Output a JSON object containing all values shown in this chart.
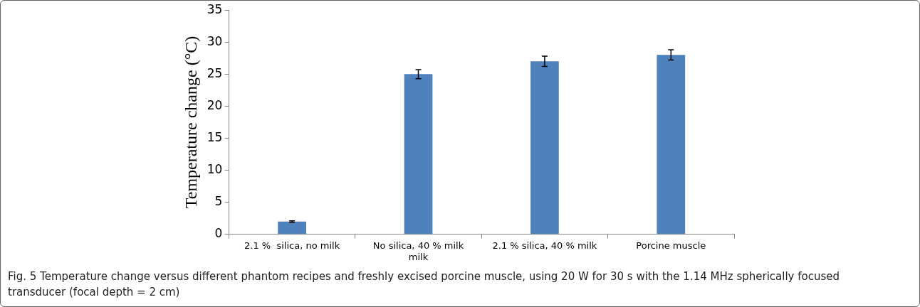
{
  "chart_data": {
    "type": "bar",
    "ylabel": "Temperature change (°C)",
    "categories": [
      "2.1 %  silica, no milk",
      "No silica, 40 % milk\nmilk",
      "2.1 % silica, 40 % milk",
      "Porcine muscle"
    ],
    "values": [
      2,
      25,
      27,
      28
    ],
    "errors": [
      0.1,
      0.7,
      0.8,
      0.8
    ],
    "color": "#4f81bd",
    "ylim": [
      0,
      35
    ],
    "yticks": [
      0,
      5,
      10,
      15,
      20,
      25,
      30,
      35
    ],
    "grid": false,
    "legend": false,
    "annotations": [
      "Fig. 5 Temperature change versus different phantom recipes and freshly excised porcine muscle, using 20 W for 30 s with the 1.14 MHz spherically focused transducer (focal depth = 2 cm)"
    ]
  }
}
